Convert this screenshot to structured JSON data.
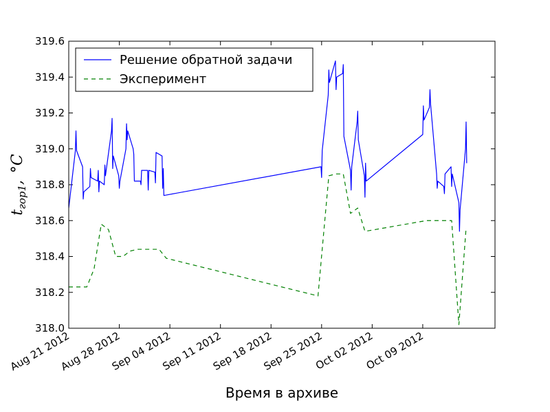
{
  "chart_data": {
    "type": "line",
    "xlabel": "Время в архиве",
    "ylabel": {
      "main": "t",
      "sub": "гор1",
      "sep": ",",
      "unit": "°C"
    },
    "ylim": [
      318.0,
      319.6
    ],
    "xlim": [
      "2012-08-21",
      "2012-10-19"
    ],
    "yticks": [
      "318.0",
      "318.2",
      "318.4",
      "318.6",
      "318.8",
      "319.0",
      "319.2",
      "319.4",
      "319.6"
    ],
    "xticks": [
      {
        "date": "2012-08-21",
        "label": "Aug 21 2012"
      },
      {
        "date": "2012-08-28",
        "label": "Aug 28 2012"
      },
      {
        "date": "2012-09-04",
        "label": "Sep 04 2012"
      },
      {
        "date": "2012-09-11",
        "label": "Sep 11 2012"
      },
      {
        "date": "2012-09-18",
        "label": "Sep 18 2012"
      },
      {
        "date": "2012-09-25",
        "label": "Sep 25 2012"
      },
      {
        "date": "2012-10-02",
        "label": "Oct 02 2012"
      },
      {
        "date": "2012-10-09",
        "label": "Oct 09 2012"
      }
    ],
    "legend_position": "top-left",
    "series": [
      {
        "name": "Решение обратной задачи",
        "color": "#0000ff",
        "style": "solid",
        "points": [
          [
            "2012-08-21 00:00",
            318.67
          ],
          [
            "2012-08-21 22:00",
            318.99
          ],
          [
            "2012-08-22 00:00",
            319.1
          ],
          [
            "2012-08-22 02:00",
            318.99
          ],
          [
            "2012-08-22 22:00",
            318.9
          ],
          [
            "2012-08-23 00:00",
            318.72
          ],
          [
            "2012-08-23 02:00",
            318.76
          ],
          [
            "2012-08-23 22:00",
            318.79
          ],
          [
            "2012-08-24 00:00",
            318.89
          ],
          [
            "2012-08-24 02:00",
            318.84
          ],
          [
            "2012-08-25 00:00",
            318.82
          ],
          [
            "2012-08-25 02:00",
            318.88
          ],
          [
            "2012-08-25 04:00",
            318.76
          ],
          [
            "2012-08-25 06:00",
            318.82
          ],
          [
            "2012-08-25 22:00",
            318.8
          ],
          [
            "2012-08-26 00:00",
            318.91
          ],
          [
            "2012-08-26 02:00",
            318.85
          ],
          [
            "2012-08-26 22:00",
            319.1
          ],
          [
            "2012-08-27 00:00",
            319.17
          ],
          [
            "2012-08-27 02:00",
            318.89
          ],
          [
            "2012-08-27 04:00",
            318.96
          ],
          [
            "2012-08-27 22:00",
            318.85
          ],
          [
            "2012-08-28 00:00",
            318.78
          ],
          [
            "2012-08-28 02:00",
            318.82
          ],
          [
            "2012-08-28 22:00",
            319.0
          ],
          [
            "2012-08-29 00:00",
            319.14
          ],
          [
            "2012-08-29 02:00",
            319.05
          ],
          [
            "2012-08-29 04:00",
            319.1
          ],
          [
            "2012-08-29 22:00",
            319.0
          ],
          [
            "2012-08-30 00:00",
            318.97
          ],
          [
            "2012-08-30 02:00",
            318.82
          ],
          [
            "2012-08-30 22:00",
            318.82
          ],
          [
            "2012-08-31 00:00",
            318.8
          ],
          [
            "2012-08-31 02:00",
            318.88
          ],
          [
            "2012-08-31 22:00",
            318.88
          ],
          [
            "2012-09-01 00:00",
            318.77
          ],
          [
            "2012-09-01 02:00",
            318.88
          ],
          [
            "2012-09-01 22:00",
            318.87
          ],
          [
            "2012-09-02 00:00",
            318.81
          ],
          [
            "2012-09-02 02:00",
            318.98
          ],
          [
            "2012-09-02 22:00",
            318.96
          ],
          [
            "2012-09-03 00:00",
            318.78
          ],
          [
            "2012-09-03 02:00",
            318.89
          ],
          [
            "2012-09-03 04:00",
            318.74
          ],
          [
            "2012-09-24 22:00",
            318.9
          ],
          [
            "2012-09-25 00:00",
            318.84
          ],
          [
            "2012-09-25 02:00",
            318.99
          ],
          [
            "2012-09-25 22:00",
            319.3
          ],
          [
            "2012-09-26 00:00",
            319.44
          ],
          [
            "2012-09-26 02:00",
            319.37
          ],
          [
            "2012-09-26 22:00",
            319.49
          ],
          [
            "2012-09-27 00:00",
            319.33
          ],
          [
            "2012-09-27 02:00",
            319.4
          ],
          [
            "2012-09-27 22:00",
            319.42
          ],
          [
            "2012-09-28 00:00",
            319.47
          ],
          [
            "2012-09-28 02:00",
            319.07
          ],
          [
            "2012-09-29 00:00",
            318.88
          ],
          [
            "2012-09-29 02:00",
            318.77
          ],
          [
            "2012-09-29 04:00",
            318.9
          ],
          [
            "2012-09-29 22:00",
            319.15
          ],
          [
            "2012-09-30 00:00",
            319.21
          ],
          [
            "2012-09-30 02:00",
            319.05
          ],
          [
            "2012-09-30 22:00",
            318.85
          ],
          [
            "2012-10-01 00:00",
            318.73
          ],
          [
            "2012-10-01 02:00",
            318.92
          ],
          [
            "2012-10-01 04:00",
            318.82
          ],
          [
            "2012-10-09 00:00",
            319.08
          ],
          [
            "2012-10-09 02:00",
            319.24
          ],
          [
            "2012-10-09 04:00",
            319.16
          ],
          [
            "2012-10-09 22:00",
            319.23
          ],
          [
            "2012-10-10 00:00",
            319.33
          ],
          [
            "2012-10-10 02:00",
            319.25
          ],
          [
            "2012-10-10 22:00",
            318.86
          ],
          [
            "2012-10-11 00:00",
            318.78
          ],
          [
            "2012-10-11 02:00",
            318.82
          ],
          [
            "2012-10-11 22:00",
            318.79
          ],
          [
            "2012-10-12 00:00",
            318.75
          ],
          [
            "2012-10-12 02:00",
            318.86
          ],
          [
            "2012-10-12 22:00",
            318.9
          ],
          [
            "2012-10-13 00:00",
            318.79
          ],
          [
            "2012-10-13 02:00",
            318.86
          ],
          [
            "2012-10-14 00:00",
            318.7
          ],
          [
            "2012-10-14 02:00",
            318.54
          ],
          [
            "2012-10-14 04:00",
            318.66
          ],
          [
            "2012-10-14 22:00",
            319.0
          ],
          [
            "2012-10-15 00:00",
            319.15
          ],
          [
            "2012-10-15 02:00",
            318.92
          ]
        ]
      },
      {
        "name": "Эксперимент",
        "color": "#008000",
        "style": "dashed",
        "points": [
          [
            "2012-08-21 00:00",
            318.23
          ],
          [
            "2012-08-23 12:00",
            318.23
          ],
          [
            "2012-08-24 12:00",
            318.33
          ],
          [
            "2012-08-25 12:00",
            318.58
          ],
          [
            "2012-08-26 12:00",
            318.55
          ],
          [
            "2012-08-27 12:00",
            318.4
          ],
          [
            "2012-08-28 12:00",
            318.4
          ],
          [
            "2012-08-29 12:00",
            318.43
          ],
          [
            "2012-08-30 12:00",
            318.44
          ],
          [
            "2012-09-02 12:00",
            318.44
          ],
          [
            "2012-09-03 12:00",
            318.39
          ],
          [
            "2012-09-24 12:00",
            318.18
          ],
          [
            "2012-09-26 00:00",
            318.85
          ],
          [
            "2012-09-27 00:00",
            318.86
          ],
          [
            "2012-09-28 00:00",
            318.86
          ],
          [
            "2012-09-29 00:00",
            318.64
          ],
          [
            "2012-09-30 00:00",
            318.67
          ],
          [
            "2012-10-01 00:00",
            318.54
          ],
          [
            "2012-10-09 12:00",
            318.6
          ],
          [
            "2012-10-13 00:00",
            318.6
          ],
          [
            "2012-10-14 00:00",
            318.02
          ],
          [
            "2012-10-15 00:00",
            318.56
          ]
        ]
      }
    ]
  }
}
